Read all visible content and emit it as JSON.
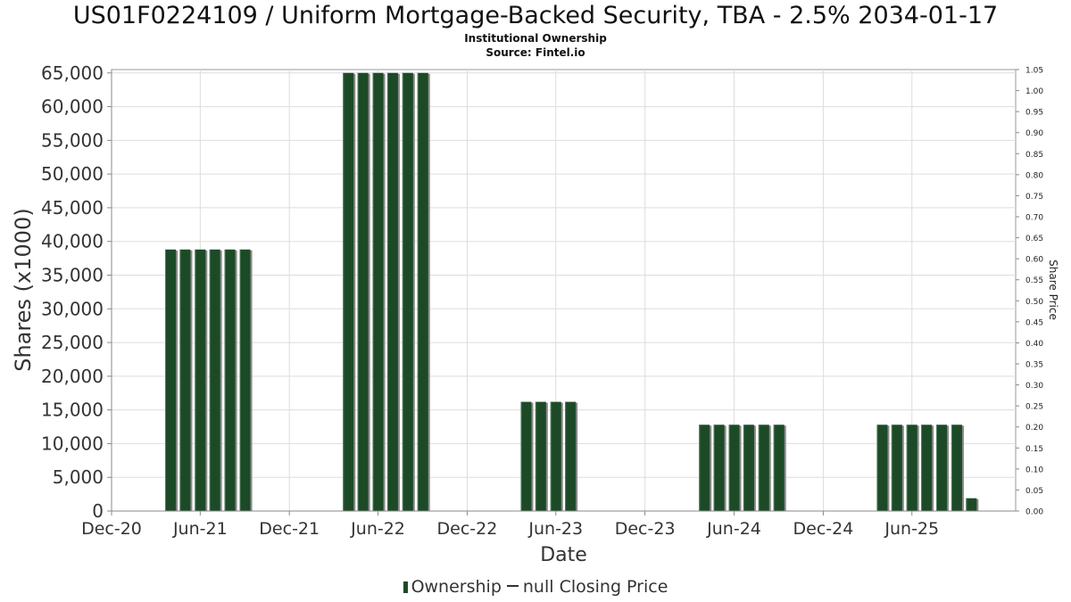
{
  "chart_data": {
    "type": "bar",
    "title": "US01F0224109 / Uniform Mortgage-Backed Security, TBA - 2.5% 2034-01-17",
    "subtitle": "Institutional Ownership",
    "source": "Source: Fintel.io",
    "xlabel": "Date",
    "ylabel": "Shares (x1000)",
    "y2label": "Share Price",
    "xlim": [
      "2020-12-01",
      "2025-12-31"
    ],
    "ylim": [
      0,
      65500
    ],
    "y2lim": [
      0,
      1.05
    ],
    "x_ticks": [
      {
        "date": "2020-12-01",
        "label": "Dec-20"
      },
      {
        "date": "2021-06-01",
        "label": "Jun-21"
      },
      {
        "date": "2021-12-01",
        "label": "Dec-21"
      },
      {
        "date": "2022-06-01",
        "label": "Jun-22"
      },
      {
        "date": "2022-12-01",
        "label": "Dec-22"
      },
      {
        "date": "2023-06-01",
        "label": "Jun-23"
      },
      {
        "date": "2023-12-01",
        "label": "Dec-23"
      },
      {
        "date": "2024-06-01",
        "label": "Jun-24"
      },
      {
        "date": "2024-12-01",
        "label": "Dec-24"
      },
      {
        "date": "2025-06-01",
        "label": "Jun-25"
      }
    ],
    "y_ticks": [
      {
        "value": 0,
        "label": "0"
      },
      {
        "value": 5000,
        "label": "5,000"
      },
      {
        "value": 10000,
        "label": "10,000"
      },
      {
        "value": 15000,
        "label": "15,000"
      },
      {
        "value": 20000,
        "label": "20,000"
      },
      {
        "value": 25000,
        "label": "25,000"
      },
      {
        "value": 30000,
        "label": "30,000"
      },
      {
        "value": 35000,
        "label": "35,000"
      },
      {
        "value": 40000,
        "label": "40,000"
      },
      {
        "value": 45000,
        "label": "45,000"
      },
      {
        "value": 50000,
        "label": "50,000"
      },
      {
        "value": 55000,
        "label": "55,000"
      },
      {
        "value": 60000,
        "label": "60,000"
      },
      {
        "value": 65000,
        "label": "65,000"
      }
    ],
    "y2_ticks": [
      "0.00",
      "0.05",
      "0.10",
      "0.15",
      "0.20",
      "0.25",
      "0.30",
      "0.35",
      "0.40",
      "0.45",
      "0.50",
      "0.55",
      "0.60",
      "0.65",
      "0.70",
      "0.75",
      "0.80",
      "0.85",
      "0.90",
      "0.95",
      "1.00",
      "1.05"
    ],
    "grid": true,
    "legend_position": "bottom-center",
    "colors": {
      "bar": "#1c4a27",
      "bar_shadow": "#8a8a8a",
      "grid": "#dddddd",
      "axis": "#888888",
      "text": "#333333"
    },
    "series": [
      {
        "name": "Ownership",
        "points": [
          {
            "date": "2021-04-01",
            "value": 38800
          },
          {
            "date": "2021-05-01",
            "value": 38800
          },
          {
            "date": "2021-06-01",
            "value": 38800
          },
          {
            "date": "2021-07-01",
            "value": 38800
          },
          {
            "date": "2021-08-01",
            "value": 38800
          },
          {
            "date": "2021-09-01",
            "value": 38800
          },
          {
            "date": "2022-04-01",
            "value": 65000
          },
          {
            "date": "2022-05-01",
            "value": 65000
          },
          {
            "date": "2022-06-01",
            "value": 65000
          },
          {
            "date": "2022-07-01",
            "value": 65000
          },
          {
            "date": "2022-08-01",
            "value": 65000
          },
          {
            "date": "2022-09-01",
            "value": 65000
          },
          {
            "date": "2023-04-01",
            "value": 16200
          },
          {
            "date": "2023-05-01",
            "value": 16200
          },
          {
            "date": "2023-06-01",
            "value": 16200
          },
          {
            "date": "2023-07-01",
            "value": 16200
          },
          {
            "date": "2024-04-01",
            "value": 12800
          },
          {
            "date": "2024-05-01",
            "value": 12800
          },
          {
            "date": "2024-06-01",
            "value": 12800
          },
          {
            "date": "2024-07-01",
            "value": 12800
          },
          {
            "date": "2024-08-01",
            "value": 12800
          },
          {
            "date": "2024-09-01",
            "value": 12800
          },
          {
            "date": "2025-04-01",
            "value": 12800
          },
          {
            "date": "2025-05-01",
            "value": 12800
          },
          {
            "date": "2025-06-01",
            "value": 12800
          },
          {
            "date": "2025-07-01",
            "value": 12800
          },
          {
            "date": "2025-08-01",
            "value": 12800
          },
          {
            "date": "2025-09-01",
            "value": 12800
          },
          {
            "date": "2025-10-01",
            "value": 1900
          }
        ]
      }
    ],
    "legend": [
      {
        "label": "Ownership",
        "kind": "bar"
      },
      {
        "label": "null Closing Price",
        "kind": "line"
      }
    ]
  }
}
